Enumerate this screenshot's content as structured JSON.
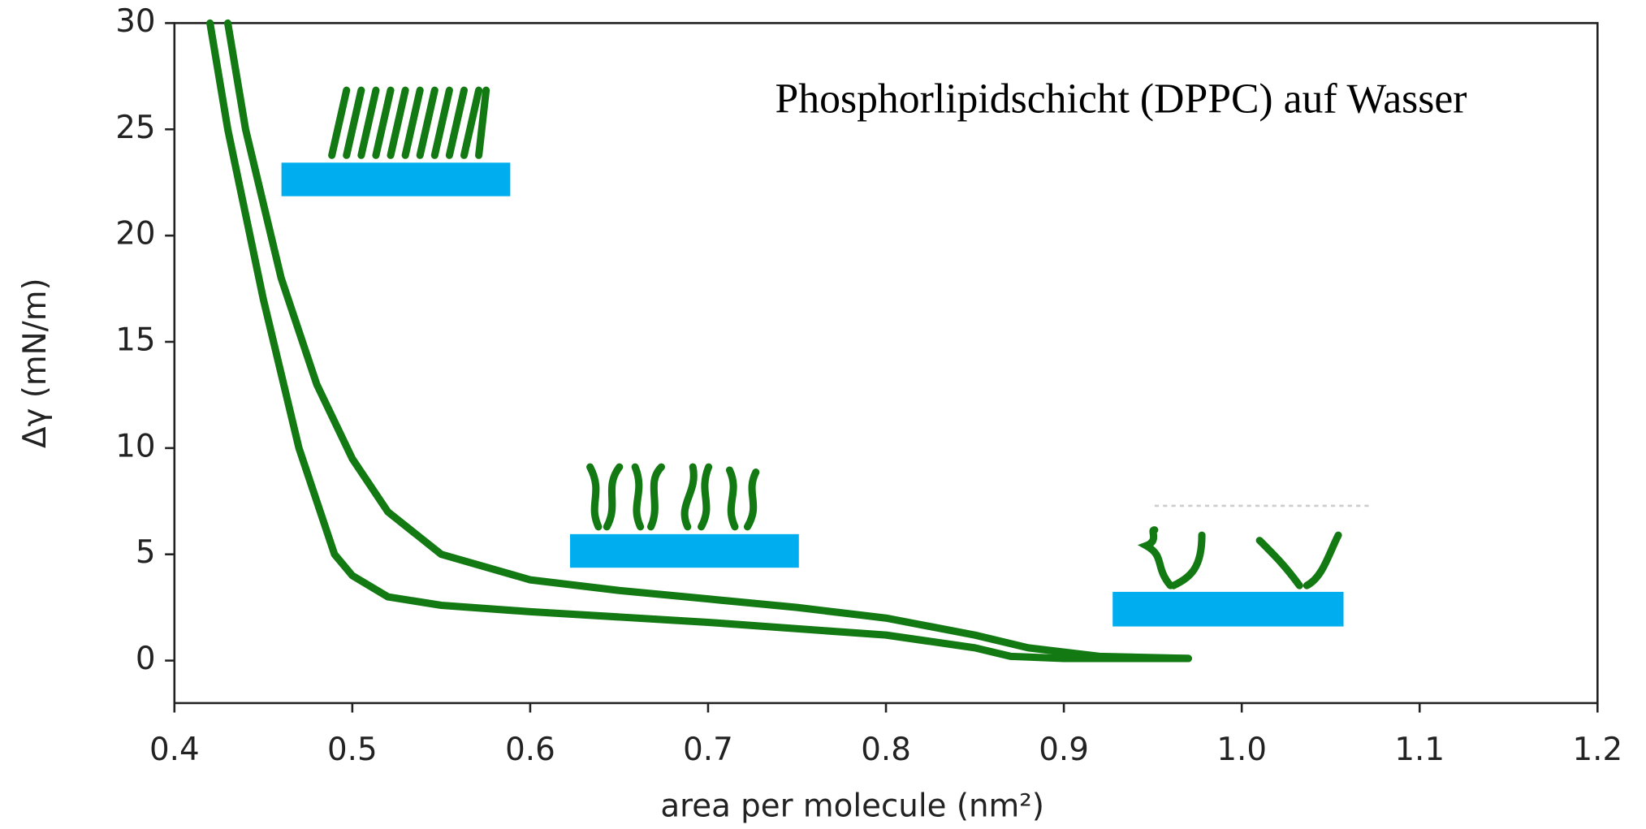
{
  "chart_data": {
    "type": "line",
    "annotation": "Phosphorlipidschicht (DPPC) auf Wasser",
    "xlabel": "area per molecule (nm²)",
    "ylabel": "Δγ  (mN/m)",
    "xlim": [
      0.4,
      1.2
    ],
    "xticks": [
      0.4,
      0.5,
      0.6,
      0.7,
      0.8,
      0.9,
      {
        "value": 1,
        "label": "1.0"
      },
      1.1,
      1.2
    ],
    "ylim": [
      -2,
      30
    ],
    "yticks": [
      0,
      5,
      10,
      15,
      20,
      25,
      30
    ],
    "series": [
      {
        "color": "#137a13",
        "x": [
          0.43,
          0.44,
          0.46,
          0.48,
          0.5,
          0.52,
          0.55,
          0.6,
          0.65,
          0.7,
          0.75,
          0.8,
          0.85,
          0.88,
          0.92,
          0.97
        ],
        "values": [
          30,
          25,
          18,
          13,
          9.5,
          7,
          5,
          3.8,
          3.3,
          2.9,
          2.5,
          2.0,
          1.2,
          0.6,
          0.2,
          0.1
        ]
      },
      {
        "color": "#137a13",
        "x": [
          0.42,
          0.43,
          0.45,
          0.47,
          0.49,
          0.5,
          0.52,
          0.55,
          0.6,
          0.7,
          0.8,
          0.85,
          0.87,
          0.9,
          0.97
        ],
        "values": [
          30,
          25,
          17,
          10,
          5,
          4,
          3,
          2.6,
          2.3,
          1.8,
          1.2,
          0.6,
          0.2,
          0.1,
          0.1
        ]
      }
    ]
  }
}
